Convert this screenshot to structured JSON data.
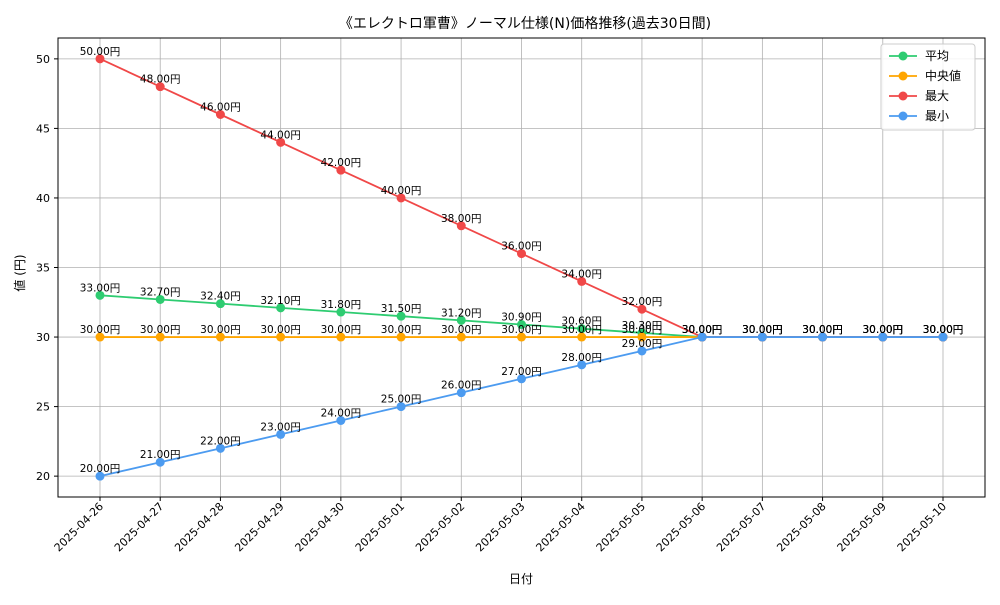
{
  "chart_data": {
    "type": "line",
    "title": "《エレクトロ軍曹》ノーマル仕様(N)価格推移(過去30日間)",
    "xlabel": "日付",
    "ylabel": "値 (円)",
    "x": [
      "2025-04-26",
      "2025-04-27",
      "2025-04-28",
      "2025-04-29",
      "2025-04-30",
      "2025-05-01",
      "2025-05-02",
      "2025-05-03",
      "2025-05-04",
      "2025-05-05",
      "2025-05-06",
      "2025-05-07",
      "2025-05-08",
      "2025-05-09",
      "2025-05-10"
    ],
    "ylim": [
      18.5,
      51.5
    ],
    "yticks": [
      20,
      25,
      30,
      35,
      40,
      45,
      50
    ],
    "grid": true,
    "legend_position": "top-right",
    "label_suffix": "円",
    "series": [
      {
        "name": "平均",
        "color": "#2ecc71",
        "values": [
          33.0,
          32.7,
          32.4,
          32.1,
          31.8,
          31.5,
          31.2,
          30.9,
          30.6,
          30.3,
          30.0,
          30.0,
          30.0,
          30.0,
          30.0
        ]
      },
      {
        "name": "中央値",
        "color": "#ffa500",
        "values": [
          30.0,
          30.0,
          30.0,
          30.0,
          30.0,
          30.0,
          30.0,
          30.0,
          30.0,
          30.0,
          30.0,
          30.0,
          30.0,
          30.0,
          30.0
        ]
      },
      {
        "name": "最大",
        "color": "#f04848",
        "values": [
          50.0,
          48.0,
          46.0,
          44.0,
          42.0,
          40.0,
          38.0,
          36.0,
          34.0,
          32.0,
          30.0,
          30.0,
          30.0,
          30.0,
          30.0
        ]
      },
      {
        "name": "最小",
        "color": "#4c9bf0",
        "values": [
          20.0,
          21.0,
          22.0,
          23.0,
          24.0,
          25.0,
          26.0,
          27.0,
          28.0,
          29.0,
          30.0,
          30.0,
          30.0,
          30.0,
          30.0
        ]
      }
    ]
  }
}
